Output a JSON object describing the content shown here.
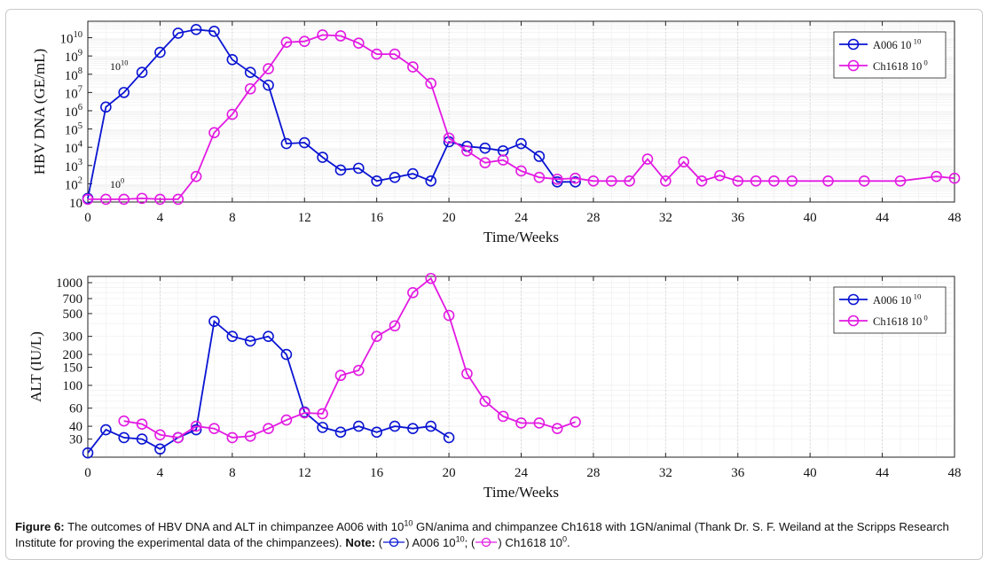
{
  "chart_data": [
    {
      "type": "line",
      "yscale": "log",
      "ylabel": "HBV DNA (GE/mL)",
      "xlabel": "Time/Weeks",
      "xlim": [
        0,
        48
      ],
      "xticks": [
        0,
        4,
        8,
        12,
        16,
        20,
        24,
        28,
        32,
        36,
        40,
        44,
        48
      ],
      "ylim": [
        1.0,
        10.9
      ],
      "yticks": [
        {
          "base": "10",
          "exp": ""
        },
        {
          "base": "10",
          "exp": "2"
        },
        {
          "base": "10",
          "exp": "3"
        },
        {
          "base": "10",
          "exp": "4"
        },
        {
          "base": "10",
          "exp": "5"
        },
        {
          "base": "10",
          "exp": "6"
        },
        {
          "base": "10",
          "exp": "7"
        },
        {
          "base": "10",
          "exp": "8"
        },
        {
          "base": "10",
          "exp": "9"
        },
        {
          "base": "10",
          "exp": "10"
        }
      ],
      "grid": true,
      "legend_position": "top-right",
      "annotations": [
        {
          "text": "10",
          "exp": "10"
        },
        {
          "text": "10",
          "exp": "0"
        }
      ],
      "series": [
        {
          "name": "A006 10",
          "name_exp": "10",
          "color": "#0a14d2",
          "x": [
            0,
            1,
            2,
            3,
            4,
            5,
            6,
            7,
            8,
            9,
            10,
            11,
            12,
            13,
            14,
            15,
            16,
            17,
            18,
            19,
            20,
            21,
            22,
            23,
            24,
            25,
            26,
            27
          ],
          "log10y": [
            1.2,
            6.2,
            7.0,
            8.1,
            9.2,
            10.25,
            10.45,
            10.35,
            8.8,
            8.1,
            7.4,
            4.2,
            4.25,
            3.45,
            2.75,
            2.85,
            2.15,
            2.35,
            2.55,
            2.15,
            4.3,
            4.05,
            3.95,
            3.8,
            4.2,
            3.5,
            2.1,
            2.1
          ]
        },
        {
          "name": "Ch1618 10",
          "name_exp": "0",
          "color": "#e21ae2",
          "x": [
            0,
            1,
            2,
            3,
            4,
            5,
            6,
            7,
            8,
            9,
            10,
            11,
            12,
            13,
            14,
            15,
            16,
            17,
            18,
            19,
            20,
            21,
            22,
            23,
            24,
            25,
            26,
            27,
            28,
            29,
            30,
            31,
            32,
            33,
            34,
            35,
            36,
            37,
            38,
            39,
            41,
            43,
            45,
            47,
            48
          ],
          "log10y": [
            1.15,
            1.15,
            1.15,
            1.2,
            1.15,
            1.15,
            2.4,
            4.8,
            5.8,
            7.2,
            8.3,
            9.75,
            9.8,
            10.15,
            10.1,
            9.7,
            9.1,
            9.1,
            8.4,
            7.5,
            4.5,
            3.8,
            3.15,
            3.3,
            2.7,
            2.35,
            2.25,
            2.3,
            2.15,
            2.15,
            2.15,
            3.35,
            2.15,
            3.2,
            2.15,
            2.45,
            2.15,
            2.15,
            2.15,
            2.15,
            2.15,
            2.15,
            2.15,
            2.4,
            2.3
          ]
        }
      ]
    },
    {
      "type": "line",
      "yscale": "log",
      "ylabel": "ALT (IU/L)",
      "xlabel": "Time/Weeks",
      "xlim": [
        0,
        48
      ],
      "xticks": [
        0,
        4,
        8,
        12,
        16,
        20,
        24,
        28,
        32,
        36,
        40,
        44,
        48
      ],
      "ylim": [
        20,
        1150
      ],
      "yticks": [
        30,
        40,
        60,
        100,
        150,
        200,
        300,
        500,
        700,
        1000
      ],
      "grid": true,
      "legend_position": "top-right",
      "series": [
        {
          "name": "A006 10",
          "name_exp": "10",
          "color": "#0a14d2",
          "x": [
            0,
            1,
            2,
            3,
            4,
            5,
            6,
            7,
            8,
            9,
            10,
            11,
            12,
            13,
            14,
            15,
            16,
            17,
            18,
            19,
            20
          ],
          "y": [
            22,
            37,
            31,
            30,
            24,
            31,
            37,
            420,
            300,
            270,
            300,
            200,
            55,
            39,
            35,
            40,
            35,
            40,
            38,
            40,
            31
          ]
        },
        {
          "name": "Ch1618 10",
          "name_exp": "0",
          "color": "#e21ae2",
          "x": [
            2,
            3,
            4,
            5,
            6,
            7,
            8,
            9,
            10,
            11,
            12,
            13,
            14,
            15,
            16,
            17,
            18,
            19,
            20,
            21,
            22,
            23,
            24,
            25,
            26,
            27
          ],
          "y": [
            45,
            42,
            33,
            31,
            40,
            38,
            31,
            32,
            38,
            46,
            54,
            53,
            125,
            140,
            300,
            380,
            800,
            1100,
            480,
            130,
            70,
            50,
            43,
            43,
            38,
            44
          ]
        }
      ]
    }
  ],
  "caption": {
    "label": "Figure 6:",
    "text1": " The outcomes of HBV DNA and ALT in chimpanzee A006 with 10",
    "exp1": "10",
    "text2": " GN/anima and chimpanzee Ch1618 with 1GN/animal (Thank Dr. S. F. Weiland at the Scripps Research Institute for proving the experimental data of the chimpanzees). ",
    "note_label": "Note:",
    "text3": " (",
    "text4": ") A006 10",
    "exp4": "10",
    "text5": "; (",
    "text6": ") Ch1618 10",
    "exp6": "0",
    "text7": "."
  }
}
